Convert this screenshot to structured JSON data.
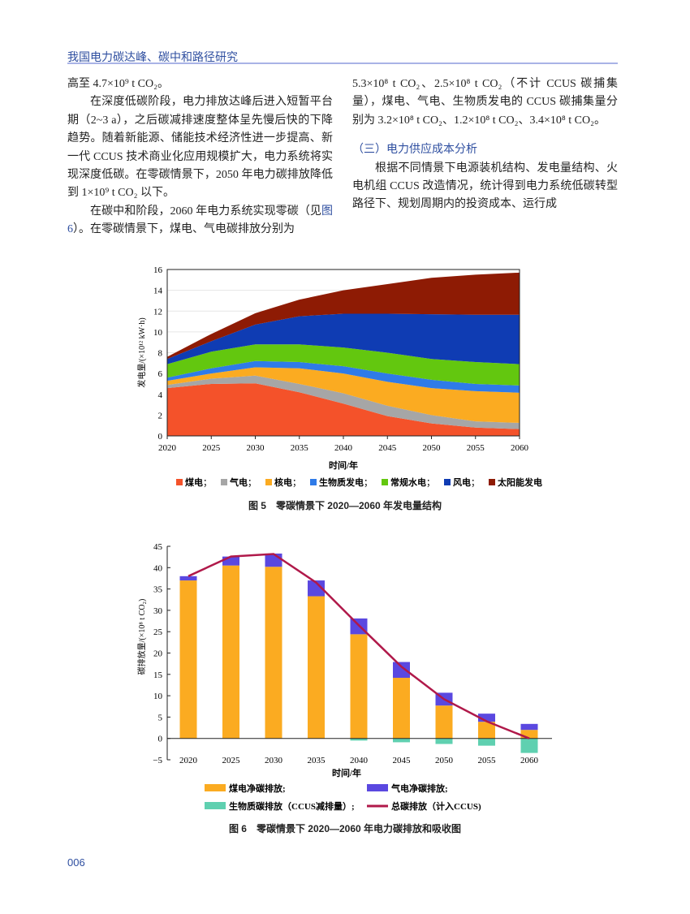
{
  "header": {
    "running_title": "我国电力碳达峰、碳中和路径研究",
    "page_number": "006"
  },
  "left_column": {
    "p1": "高至 4.7×10⁹ t CO₂。",
    "p2": "在深度低碳阶段，电力排放达峰后进入短暂平台期（2~3 a），之后碳减排速度整体呈先慢后快的下降趋势。随着新能源、储能技术经济性进一步提高、新一代 CCUS 技术商业化应用规模扩大，电力系统将实现深度低碳。在零碳情景下，2050 年电力碳排放降低到 1×10⁹ t CO₂ 以下。",
    "p3_a": "在碳中和阶段，2060 年电力系统实现零碳（见",
    "p3_link": "图 6",
    "p3_b": "）。在零碳情景下，煤电、气电碳排放分别为"
  },
  "right_column": {
    "p1": "5.3×10⁸ t CO₂、2.5×10⁸ t CO₂（不计 CCUS 碳捕集量），煤电、气电、生物质发电的 CCUS 碳捕集量分别为 3.2×10⁸ t CO₂、1.2×10⁸ t CO₂、3.4×10⁸ t CO₂。",
    "section_title": "（三）电力供应成本分析",
    "p2": "根据不同情景下电源装机结构、发电量结构、火电机组 CCUS 改造情况，统计得到电力系统低碳转型路径下、规划周期内的投资成本、运行成"
  },
  "chart_data": [
    {
      "type": "area",
      "stacked": true,
      "caption": "图 5　零碳情景下 2020—2060 年发电量结构",
      "xlabel": "时间/年",
      "ylabel": "发电量/(×10¹² kW·h)",
      "ylim": [
        0,
        16
      ],
      "yticks": [
        0,
        2,
        4,
        6,
        8,
        10,
        12,
        14,
        16
      ],
      "x": [
        2020,
        2025,
        2030,
        2035,
        2040,
        2045,
        2050,
        2055,
        2060
      ],
      "grid": true,
      "legend": "bottom",
      "series": [
        {
          "name": "煤电",
          "color": "#f4522a",
          "values": [
            4.6,
            5.0,
            5.05,
            4.2,
            3.1,
            1.9,
            1.2,
            0.8,
            0.65
          ]
        },
        {
          "name": "气电",
          "color": "#a6a6a6",
          "values": [
            0.3,
            0.5,
            0.75,
            0.8,
            1.0,
            1.0,
            0.8,
            0.6,
            0.6
          ]
        },
        {
          "name": "核电",
          "color": "#fbab21",
          "values": [
            0.4,
            0.5,
            0.8,
            1.5,
            1.9,
            2.3,
            2.6,
            2.9,
            2.9
          ]
        },
        {
          "name": "生物质发电",
          "color": "#2f7be8",
          "values": [
            0.3,
            0.5,
            0.6,
            0.6,
            0.7,
            0.8,
            0.8,
            0.7,
            0.7
          ]
        },
        {
          "name": "常规水电",
          "color": "#63c70f",
          "values": [
            1.3,
            1.6,
            1.6,
            1.7,
            1.8,
            2.0,
            2.0,
            2.1,
            2.05
          ]
        },
        {
          "name": "风电",
          "color": "#0f3cb3",
          "values": [
            0.5,
            1.0,
            1.9,
            2.7,
            3.25,
            3.75,
            4.3,
            4.55,
            4.75
          ]
        },
        {
          "name": "太阳能发电",
          "color": "#8e1b04",
          "values": [
            0.2,
            0.7,
            1.1,
            1.6,
            2.25,
            2.85,
            3.5,
            3.85,
            4.05
          ]
        }
      ]
    },
    {
      "type": "bar",
      "stacked": true,
      "caption": "图 6　零碳情景下 2020—2060 年电力碳排放和吸收图",
      "xlabel": "时间/年",
      "ylabel": "碳排放量/(×10⁸ t CO₂)",
      "ylim": [
        -5,
        45
      ],
      "yticks": [
        -5,
        0,
        5,
        10,
        15,
        20,
        25,
        30,
        35,
        40,
        45
      ],
      "categories": [
        "2020",
        "2025",
        "2030",
        "2035",
        "2040",
        "2045",
        "2050",
        "2055",
        "2060"
      ],
      "legend": "bottom",
      "series": [
        {
          "name": "煤电净碳排放;",
          "type": "bar",
          "color": "#fbab21",
          "values": [
            37.0,
            40.5,
            40.2,
            33.3,
            24.4,
            14.2,
            7.7,
            3.9,
            2.0
          ]
        },
        {
          "name": "气电净碳排放;",
          "type": "bar",
          "color": "#5a48e0",
          "values": [
            1.0,
            2.1,
            3.1,
            3.7,
            3.7,
            3.7,
            3.0,
            1.9,
            1.4
          ]
        },
        {
          "name": "生物质碳排放（CCUS减排量）;",
          "type": "bar",
          "color": "#5fd0b0",
          "values": [
            0,
            0,
            0,
            0,
            -0.5,
            -0.9,
            -1.3,
            -1.7,
            -3.4
          ]
        },
        {
          "name": "总碳排放（计入CCUS)",
          "type": "line",
          "color": "#b0194a",
          "values": [
            38.0,
            42.6,
            43.2,
            36.5,
            26.5,
            16.8,
            9.2,
            4.0,
            0.0
          ]
        }
      ]
    }
  ]
}
